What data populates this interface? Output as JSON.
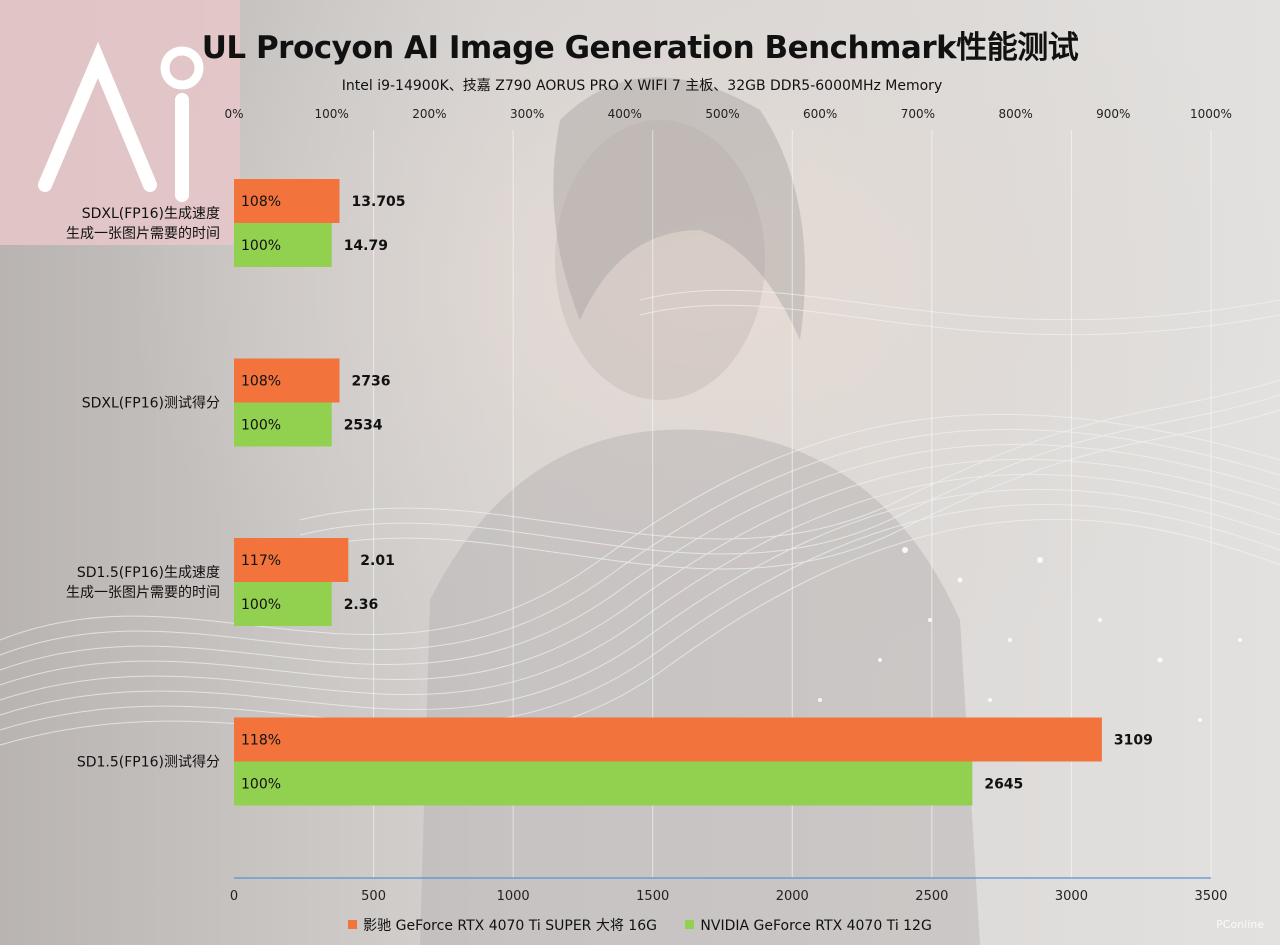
{
  "chart_data": {
    "type": "bar",
    "orientation": "horizontal",
    "title": "UL Procyon AI Image Generation Benchmark性能测试",
    "subtitle": "Intel i9-14900K、技嘉 Z790 AORUS PRO X WIFI 7 主板、32GB DDR5-6000MHz Memory",
    "categories": [
      [
        "SDXL(FP16)生成速度",
        "生成一张图片需要的时间"
      ],
      [
        "SDXL(FP16)测试得分"
      ],
      [
        "SD1.5(FP16)生成速度",
        "生成一张图片需要的时间"
      ],
      [
        "SD1.5(FP16)测试得分"
      ]
    ],
    "series": [
      {
        "name": "影驰 GeForce RTX 4070 Ti SUPER 大将 16G",
        "color": "#f2733c",
        "percent_labels": [
          "108%",
          "108%",
          "117%",
          "118%"
        ],
        "value_labels": [
          "13.705",
          "2736",
          "2.01",
          "3109"
        ],
        "percent_values": [
          108,
          108,
          117,
          118
        ]
      },
      {
        "name": "NVIDIA GeForce RTX 4070 Ti 12G",
        "color": "#92d050",
        "percent_labels": [
          "100%",
          "100%",
          "100%",
          "100%"
        ],
        "value_labels": [
          "14.79",
          "2534",
          "2.36",
          "2645"
        ],
        "percent_values": [
          100,
          100,
          100,
          100
        ]
      }
    ],
    "bar_axis": [
      "percent",
      "percent",
      "percent",
      "value"
    ],
    "axis_bottom": {
      "min": 0,
      "max": 3500,
      "ticks": [
        "0",
        "500",
        "1000",
        "1500",
        "2000",
        "2500",
        "3000",
        "3500"
      ]
    },
    "axis_top": {
      "min": 0,
      "max": 1000,
      "ticks": [
        "0%",
        "100%",
        "200%",
        "300%",
        "400%",
        "500%",
        "600%",
        "700%",
        "800%",
        "900%",
        "1000%"
      ]
    },
    "grid": true,
    "legend_position": "bottom"
  },
  "watermark": "PConline",
  "colors": {
    "accent_orange": "#f2733c",
    "accent_green": "#92d050"
  }
}
